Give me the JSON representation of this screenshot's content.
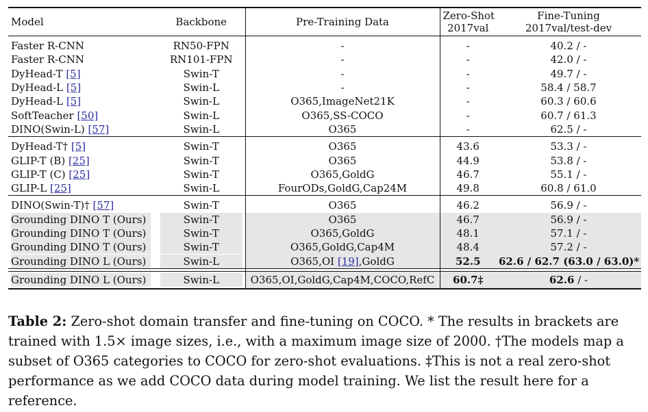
{
  "headers": {
    "model": "Model",
    "backbone": "Backbone",
    "pretraining": "Pre-Training Data",
    "zeroshot_line1": "Zero-Shot",
    "zeroshot_line2": "2017val",
    "finetune_line1": "Fine-Tuning",
    "finetune_line2": "2017val/test-dev"
  },
  "group1": [
    {
      "model": "Faster R-CNN",
      "ref": "",
      "backbone": "RN50-FPN",
      "data": "-",
      "zs": "-",
      "ft": "40.2 / -"
    },
    {
      "model": "Faster R-CNN",
      "ref": "",
      "backbone": "RN101-FPN",
      "data": "-",
      "zs": "-",
      "ft": "42.0 / -"
    },
    {
      "model": "DyHead-T ",
      "ref": "[5]",
      "backbone": "Swin-T",
      "data": "-",
      "zs": "-",
      "ft": "49.7 / -"
    },
    {
      "model": "DyHead-L ",
      "ref": "[5]",
      "backbone": "Swin-L",
      "data": "-",
      "zs": "-",
      "ft": "58.4 / 58.7"
    },
    {
      "model": "DyHead-L ",
      "ref": "[5]",
      "backbone": "Swin-L",
      "data": "O365,ImageNet21K",
      "zs": "-",
      "ft": "60.3 / 60.6"
    },
    {
      "model": "SoftTeacher ",
      "ref": "[50]",
      "backbone": "Swin-L",
      "data": "O365,SS-COCO",
      "zs": "-",
      "ft": "60.7 / 61.3"
    },
    {
      "model": "DINO(Swin-L) ",
      "ref": "[57]",
      "backbone": "Swin-L",
      "data": "O365",
      "zs": "-",
      "ft": "62.5 / -"
    }
  ],
  "group2": [
    {
      "model": "DyHead-T† ",
      "ref": "[5]",
      "backbone": "Swin-T",
      "data": "O365",
      "zs": "43.6",
      "ft": "53.3 / -"
    },
    {
      "model": "GLIP-T (B) ",
      "ref": "[25]",
      "backbone": "Swin-T",
      "data": "O365",
      "zs": "44.9",
      "ft": "53.8 / -"
    },
    {
      "model": "GLIP-T (C) ",
      "ref": "[25]",
      "backbone": "Swin-T",
      "data": "O365,GoldG",
      "zs": "46.7",
      "ft": "55.1 / -"
    },
    {
      "model": "GLIP-L ",
      "ref": "[25]",
      "backbone": "Swin-L",
      "data": "FourODs,GoldG,Cap24M",
      "zs": "49.8",
      "ft": "60.8 / 61.0"
    }
  ],
  "group3": [
    {
      "model": "DINO(Swin-T)† ",
      "ref": "[57]",
      "backbone": "Swin-T",
      "data": "O365",
      "zs": "46.2",
      "ft": "56.9 / -"
    },
    {
      "model": "Grounding DINO T (Ours)",
      "ref": "",
      "backbone": "Swin-T",
      "data": "O365",
      "zs": "46.7",
      "ft": "56.9 / -"
    },
    {
      "model": "Grounding DINO T (Ours)",
      "ref": "",
      "backbone": "Swin-T",
      "data": "O365,GoldG",
      "zs": "48.1",
      "ft": "57.1 / -"
    },
    {
      "model": "Grounding DINO T (Ours)",
      "ref": "",
      "backbone": "Swin-T",
      "data": "O365,GoldG,Cap4M",
      "zs": "48.4",
      "ft": "57.2 / -"
    },
    {
      "model": "Grounding DINO L (Ours)",
      "ref": "",
      "backbone": "Swin-L",
      "data_pre": "O365,OI ",
      "data_ref": "[19]",
      "data_post": ",GoldG",
      "zs": "52.5",
      "ft": "62.6 / 62.7 (63.0 / 63.0)*"
    }
  ],
  "group4": [
    {
      "model": "Grounding DINO L (Ours)",
      "backbone": "Swin-L",
      "data": "O365,OI,GoldG,Cap4M,COCO,RefC",
      "zs": "60.7‡",
      "ft_bold": "62.6",
      "ft_rest": " / -"
    }
  ],
  "caption": {
    "label": "Table 2:",
    "text": " Zero-shot domain transfer and fine-tuning on COCO. * The results in brackets are trained with 1.5× image sizes, i.e., with a maximum image size of 2000. †The models map a subset of O365 categories to COCO for zero-shot evaluations. ‡This is not a real zero-shot performance as we add COCO data during model training. We list the result here for a reference."
  }
}
